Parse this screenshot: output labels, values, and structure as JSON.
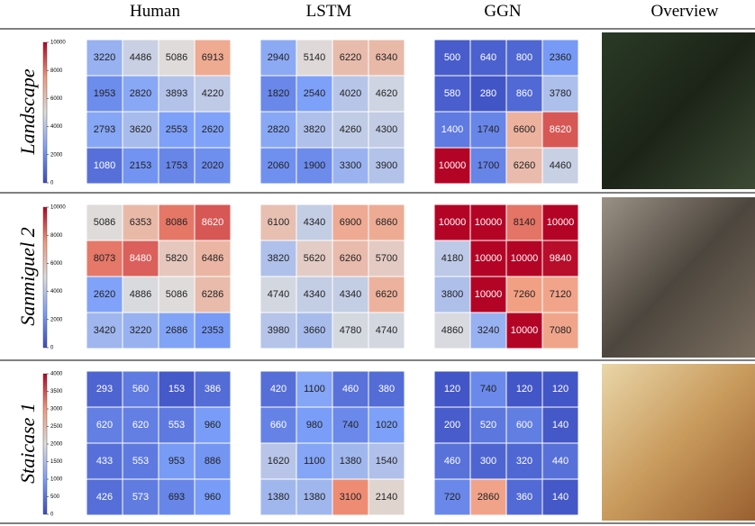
{
  "columns": [
    "Human",
    "LSTM",
    "GGN",
    "Overview"
  ],
  "rows": [
    {
      "label": "Landscape",
      "colorbar": {
        "lim": [
          0,
          10000
        ],
        "ticks": [
          0,
          2000,
          4000,
          6000,
          8000,
          10000
        ]
      },
      "heatmaps": [
        [
          [
            3220,
            4486,
            5086,
            6913
          ],
          [
            1953,
            2820,
            3893,
            4220
          ],
          [
            2793,
            3620,
            2553,
            2620
          ],
          [
            1080,
            2153,
            1753,
            2020
          ]
        ],
        [
          [
            2940,
            5140,
            6220,
            6340
          ],
          [
            1820,
            2540,
            4020,
            4620
          ],
          [
            2820,
            3820,
            4260,
            4300
          ],
          [
            2060,
            1900,
            3300,
            3900
          ]
        ],
        [
          [
            500,
            640,
            800,
            2360
          ],
          [
            580,
            280,
            860,
            3780
          ],
          [
            1400,
            1740,
            6600,
            8620
          ],
          [
            10000,
            1700,
            6260,
            4460
          ]
        ]
      ]
    },
    {
      "label": "Sanmiguel 2",
      "colorbar": {
        "lim": [
          0,
          10000
        ],
        "ticks": [
          0,
          2000,
          4000,
          6000,
          8000,
          10000
        ]
      },
      "heatmaps": [
        [
          [
            5086,
            6353,
            8086,
            8620
          ],
          [
            8073,
            8480,
            5820,
            6486
          ],
          [
            2620,
            4886,
            5086,
            6286
          ],
          [
            3420,
            3220,
            2686,
            2353
          ]
        ],
        [
          [
            6100,
            4340,
            6900,
            6860
          ],
          [
            3820,
            5620,
            6260,
            5700
          ],
          [
            4740,
            4340,
            4340,
            6620
          ],
          [
            3980,
            3660,
            4780,
            4740
          ]
        ],
        [
          [
            10000,
            10000,
            8140,
            10000
          ],
          [
            4180,
            10000,
            10000,
            9840
          ],
          [
            3800,
            10000,
            7260,
            7120
          ],
          [
            4860,
            3240,
            10000,
            7080
          ]
        ]
      ]
    },
    {
      "label": "Staicase 1",
      "colorbar": {
        "lim": [
          0,
          4000
        ],
        "ticks": [
          0,
          500,
          1000,
          1500,
          2000,
          2500,
          3000,
          3500,
          4000
        ]
      },
      "heatmaps": [
        [
          [
            293,
            560,
            153,
            386
          ],
          [
            620,
            620,
            553,
            960
          ],
          [
            433,
            553,
            953,
            886
          ],
          [
            426,
            573,
            693,
            960
          ]
        ],
        [
          [
            420,
            1100,
            460,
            380
          ],
          [
            660,
            980,
            740,
            1020
          ],
          [
            1620,
            1100,
            1380,
            1540
          ],
          [
            1380,
            1380,
            3100,
            2140
          ]
        ],
        [
          [
            120,
            740,
            120,
            120
          ],
          [
            200,
            520,
            600,
            140
          ],
          [
            460,
            300,
            320,
            440
          ],
          [
            720,
            2860,
            360,
            140
          ]
        ]
      ]
    }
  ]
}
